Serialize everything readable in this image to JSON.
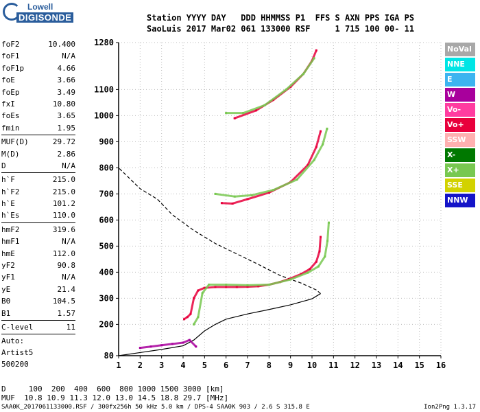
{
  "logo": {
    "line1": "Lowell",
    "line2": "DIGISONDE"
  },
  "header": {
    "labels": [
      "Station",
      "YYYY",
      "DAY",
      "DDD",
      "HHMMSS",
      "P1",
      "FFS",
      "S",
      "AXN",
      "PPS",
      "IGA",
      "PS"
    ],
    "row1": "Station YYYY DAY   DDD HHMMSS P1  FFS S AXN PPS IGA PS",
    "row2": "SaoLuis 2017 Mar02 061 133000 RSF     1 715 100 00- 11"
  },
  "params": {
    "group1": [
      {
        "name": "foF2",
        "value": "10.400"
      },
      {
        "name": "foF1",
        "value": "N/A"
      },
      {
        "name": "foF1p",
        "value": "4.66"
      },
      {
        "name": "foE",
        "value": "3.66"
      },
      {
        "name": "foEp",
        "value": "3.49"
      },
      {
        "name": "fxI",
        "value": "10.80"
      },
      {
        "name": "foEs",
        "value": "3.65"
      },
      {
        "name": "fmin",
        "value": "1.95"
      }
    ],
    "group2": [
      {
        "name": "MUF(D)",
        "value": "29.72"
      },
      {
        "name": "M(D)",
        "value": "2.86"
      },
      {
        "name": "D",
        "value": "N/A"
      }
    ],
    "group3": [
      {
        "name": "h`F",
        "value": "215.0"
      },
      {
        "name": "h`F2",
        "value": "215.0"
      },
      {
        "name": "h`E",
        "value": "101.2"
      },
      {
        "name": "h`Es",
        "value": "110.0"
      }
    ],
    "group4": [
      {
        "name": "hmF2",
        "value": "319.6"
      },
      {
        "name": "hmF1",
        "value": "N/A"
      },
      {
        "name": "hmE",
        "value": "112.0"
      },
      {
        "name": "yF2",
        "value": "90.8"
      },
      {
        "name": "yF1",
        "value": "N/A"
      },
      {
        "name": "yE",
        "value": "21.4"
      },
      {
        "name": "B0",
        "value": "104.5"
      },
      {
        "name": "B1",
        "value": "1.57"
      }
    ],
    "group5": [
      {
        "name": "C-level",
        "value": "11"
      }
    ],
    "auto": [
      "Auto:",
      "Artist5",
      "500200"
    ]
  },
  "legend": [
    {
      "label": "NoVal",
      "color": "#a8a8a8"
    },
    {
      "label": "NNE",
      "color": "#00e5e5"
    },
    {
      "label": "E",
      "color": "#3cb4f0"
    },
    {
      "label": "W",
      "color": "#a8009c"
    },
    {
      "label": "Vo-",
      "color": "#ff3ca0"
    },
    {
      "label": "Vo+",
      "color": "#e8003c"
    },
    {
      "label": "SSW",
      "color": "#ffb0b0"
    },
    {
      "label": "X-",
      "color": "#007800"
    },
    {
      "label": "X+",
      "color": "#78c850"
    },
    {
      "label": "SSE",
      "color": "#d2d200"
    },
    {
      "label": "NNW",
      "color": "#1414c8"
    }
  ],
  "footer": {
    "row1": "D     100  200  400  600  800 1000 1500 3000 [km]",
    "row2": "MUF  10.8 10.9 11.3 12.0 13.0 14.5 18.8 29.7 [MHz]",
    "line": "SAA0K_2017061133000.RSF / 300fx256h 50 kHz 5.0 km / DPS-4 SAA0K 903 / 2.6 S 315.8 E",
    "version": "Ion2Png 1.3.17"
  },
  "chart_data": {
    "type": "scatter",
    "xlim": [
      1,
      16
    ],
    "ylim": [
      80,
      1280
    ],
    "x_ticks": [
      1,
      2,
      3,
      4,
      5,
      6,
      7,
      8,
      9,
      10,
      11,
      12,
      13,
      14,
      15,
      16
    ],
    "y_ticks": [
      80,
      200,
      300,
      400,
      500,
      600,
      700,
      800,
      900,
      1000,
      1100,
      1280
    ],
    "grid": "dotted",
    "traces": [
      {
        "name": "O-F2",
        "color": "#e8003c",
        "points": [
          [
            4.05,
            220
          ],
          [
            4.2,
            228
          ],
          [
            4.35,
            240
          ],
          [
            4.5,
            300
          ],
          [
            4.7,
            330
          ],
          [
            5.0,
            340
          ],
          [
            5.5,
            343
          ],
          [
            6.0,
            343
          ],
          [
            6.5,
            343
          ],
          [
            7.0,
            344
          ],
          [
            7.5,
            346
          ],
          [
            8.0,
            352
          ],
          [
            8.5,
            362
          ],
          [
            9.0,
            376
          ],
          [
            9.5,
            393
          ],
          [
            9.9,
            412
          ],
          [
            10.2,
            440
          ],
          [
            10.35,
            480
          ],
          [
            10.4,
            535
          ]
        ]
      },
      {
        "name": "X-F2",
        "color": "#78c850",
        "points": [
          [
            4.5,
            200
          ],
          [
            4.7,
            228
          ],
          [
            4.9,
            320
          ],
          [
            5.2,
            352
          ],
          [
            6.0,
            352
          ],
          [
            7.0,
            350
          ],
          [
            8.0,
            352
          ],
          [
            9.0,
            372
          ],
          [
            9.8,
            398
          ],
          [
            10.3,
            422
          ],
          [
            10.6,
            460
          ],
          [
            10.72,
            520
          ],
          [
            10.78,
            590
          ]
        ]
      },
      {
        "name": "O-2F2",
        "color": "#e8003c",
        "points": [
          [
            5.8,
            665
          ],
          [
            6.3,
            663
          ],
          [
            7.0,
            680
          ],
          [
            8.0,
            705
          ],
          [
            9.0,
            745
          ],
          [
            9.8,
            810
          ],
          [
            10.2,
            880
          ],
          [
            10.4,
            940
          ]
        ]
      },
      {
        "name": "X-2F2",
        "color": "#78c850",
        "points": [
          [
            5.5,
            700
          ],
          [
            6.4,
            690
          ],
          [
            7.2,
            695
          ],
          [
            8.2,
            715
          ],
          [
            9.3,
            755
          ],
          [
            10.1,
            830
          ],
          [
            10.5,
            890
          ],
          [
            10.7,
            950
          ]
        ]
      },
      {
        "name": "O-3F2",
        "color": "#e8003c",
        "points": [
          [
            6.4,
            990
          ],
          [
            7.4,
            1020
          ],
          [
            8.2,
            1060
          ],
          [
            9.0,
            1110
          ],
          [
            9.6,
            1160
          ],
          [
            10.0,
            1210
          ],
          [
            10.2,
            1250
          ]
        ]
      },
      {
        "name": "X-3F2",
        "color": "#78c850",
        "points": [
          [
            6.0,
            1010
          ],
          [
            6.8,
            1010
          ],
          [
            7.8,
            1040
          ],
          [
            8.8,
            1100
          ],
          [
            9.6,
            1160
          ],
          [
            10.1,
            1220
          ]
        ]
      },
      {
        "name": "Es",
        "color": "#a8009c",
        "points": [
          [
            2.0,
            110
          ],
          [
            2.5,
            115
          ],
          [
            3.0,
            120
          ],
          [
            3.5,
            125
          ],
          [
            4.0,
            130
          ],
          [
            4.3,
            140
          ],
          [
            4.6,
            115
          ]
        ]
      }
    ],
    "profile": [
      [
        1.0,
        80
      ],
      [
        2.0,
        92
      ],
      [
        3.0,
        104
      ],
      [
        4.0,
        118
      ],
      [
        4.5,
        140
      ],
      [
        5.0,
        175
      ],
      [
        5.5,
        200
      ],
      [
        6.0,
        220
      ],
      [
        7.0,
        240
      ],
      [
        8.0,
        257
      ],
      [
        9.0,
        275
      ],
      [
        10.0,
        298
      ],
      [
        10.4,
        318
      ],
      [
        10.2,
        332
      ],
      [
        9.5,
        358
      ],
      [
        8.5,
        388
      ],
      [
        7.5,
        430
      ],
      [
        6.5,
        470
      ],
      [
        5.5,
        510
      ],
      [
        4.5,
        560
      ],
      [
        3.5,
        620
      ],
      [
        2.8,
        680
      ],
      [
        2.0,
        720
      ],
      [
        1.5,
        760
      ],
      [
        1.0,
        800
      ]
    ]
  }
}
